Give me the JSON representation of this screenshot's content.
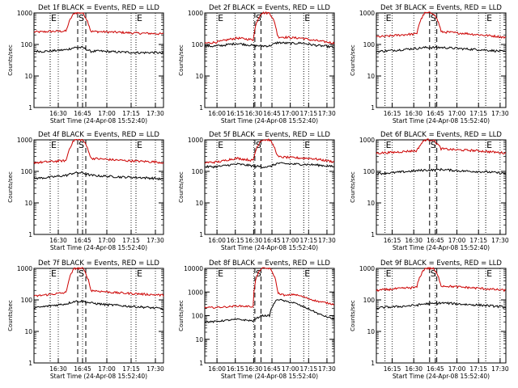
{
  "chart_data": [
    {
      "type": "line",
      "title": "Det 1f BLACK = Events, RED = LLD",
      "xlabel": "Start Time (24-Apr-08 15:52:40)",
      "ylabel": "Counts/sec",
      "yscale": "log",
      "ylim": [
        1,
        1000
      ],
      "x_ticks": [
        "16:30",
        "16:45",
        "17:00",
        "17:15",
        "17:30"
      ],
      "markers": [
        {
          "label": "E",
          "x": "16:25"
        },
        {
          "label": "S",
          "x": "16:42"
        },
        {
          "label": "E",
          "x": "17:18"
        }
      ],
      "series": [
        {
          "color": "#cc0000",
          "levels": [
            250,
            250,
            260,
            262,
            265,
            1000,
            1000,
            260,
            255,
            250,
            245,
            240,
            232,
            228,
            225,
            222,
            215
          ]
        },
        {
          "color": "#000000",
          "levels": [
            62,
            60,
            62,
            65,
            68,
            80,
            80,
            60,
            62,
            60,
            58,
            57,
            56,
            55,
            55,
            56,
            52
          ]
        }
      ]
    },
    {
      "type": "line",
      "title": "Det 2f BLACK = Events, RED = LLD",
      "xlabel": "Start Time (24-Apr-08 15:52:40)",
      "ylabel": "Counts/sec",
      "yscale": "log",
      "ylim": [
        1,
        1000
      ],
      "x_ticks": [
        "16:00",
        "16:15",
        "16:30",
        "16:45",
        "17:00",
        "17:15",
        "17:30"
      ],
      "markers": [
        {
          "label": "E",
          "x": "16:00"
        },
        {
          "label": "S",
          "x": "16:31"
        },
        {
          "label": "E",
          "x": "17:11"
        }
      ],
      "series": [
        {
          "color": "#cc0000",
          "levels": [
            110,
            115,
            125,
            145,
            160,
            150,
            140,
            1000,
            1000,
            175,
            170,
            162,
            160,
            140,
            130,
            120,
            110
          ]
        },
        {
          "color": "#000000",
          "levels": [
            90,
            88,
            92,
            100,
            108,
            100,
            92,
            90,
            90,
            115,
            110,
            108,
            112,
            100,
            92,
            88,
            80
          ]
        }
      ]
    },
    {
      "type": "line",
      "title": "Det 3f BLACK = Events, RED = LLD",
      "xlabel": "Start Time (24-Apr-08 15:52:40)",
      "ylabel": "Counts/sec",
      "yscale": "log",
      "ylim": [
        1,
        1000
      ],
      "x_ticks": [
        "16:15",
        "16:30",
        "16:45",
        "17:00",
        "17:15",
        "17:30"
      ],
      "markers": [
        {
          "label": "E",
          "x": "16:10"
        },
        {
          "label": "S",
          "x": "16:41"
        },
        {
          "label": "E",
          "x": "17:20"
        }
      ],
      "series": [
        {
          "color": "#cc0000",
          "levels": [
            175,
            180,
            190,
            200,
            210,
            215,
            1000,
            1000,
            250,
            245,
            230,
            225,
            210,
            200,
            190,
            180,
            165
          ]
        },
        {
          "color": "#000000",
          "levels": [
            60,
            62,
            65,
            68,
            72,
            75,
            80,
            80,
            80,
            78,
            75,
            72,
            70,
            68,
            65,
            62,
            58
          ]
        }
      ]
    },
    {
      "type": "line",
      "title": "Det 4f BLACK = Events, RED = LLD",
      "xlabel": "Start Time (24-Apr-08 15:52:40)",
      "ylabel": "Counts/sec",
      "yscale": "log",
      "ylim": [
        1,
        1000
      ],
      "x_ticks": [
        "16:30",
        "16:45",
        "17:00",
        "17:15",
        "17:30"
      ],
      "markers": [
        {
          "label": "E",
          "x": "16:25"
        },
        {
          "label": "S",
          "x": "16:42"
        },
        {
          "label": "E",
          "x": "17:18"
        }
      ],
      "series": [
        {
          "color": "#cc0000",
          "levels": [
            190,
            195,
            205,
            212,
            220,
            1000,
            1000,
            260,
            250,
            240,
            230,
            222,
            215,
            210,
            205,
            200,
            190
          ]
        },
        {
          "color": "#000000",
          "levels": [
            60,
            62,
            65,
            70,
            75,
            90,
            90,
            75,
            72,
            70,
            68,
            66,
            65,
            64,
            62,
            60,
            55
          ]
        }
      ]
    },
    {
      "type": "line",
      "title": "Det 5f BLACK = Events, RED = LLD",
      "xlabel": "Start Time (24-Apr-08 15:52:40)",
      "ylabel": "Counts/sec",
      "yscale": "log",
      "ylim": [
        1,
        1000
      ],
      "x_ticks": [
        "16:00",
        "16:15",
        "16:30",
        "16:45",
        "17:00",
        "17:15",
        "17:30"
      ],
      "markers": [
        {
          "label": "E",
          "x": "16:00"
        },
        {
          "label": "S",
          "x": "16:31"
        },
        {
          "label": "E",
          "x": "17:11"
        }
      ],
      "series": [
        {
          "color": "#cc0000",
          "levels": [
            190,
            195,
            205,
            240,
            260,
            240,
            220,
            1000,
            1000,
            290,
            280,
            270,
            265,
            260,
            240,
            220,
            200
          ]
        },
        {
          "color": "#000000",
          "levels": [
            140,
            140,
            145,
            160,
            170,
            160,
            148,
            140,
            140,
            180,
            175,
            170,
            168,
            165,
            158,
            150,
            140
          ]
        }
      ]
    },
    {
      "type": "line",
      "title": "Det 6f BLACK = Events, RED = LLD",
      "xlabel": "Start Time (24-Apr-08 15:52:40)",
      "ylabel": "Counts/sec",
      "yscale": "log",
      "ylim": [
        1,
        1000
      ],
      "x_ticks": [
        "16:15",
        "16:30",
        "16:45",
        "17:00",
        "17:15",
        "17:30"
      ],
      "markers": [
        {
          "label": "E",
          "x": "16:10"
        },
        {
          "label": "S",
          "x": "16:41"
        },
        {
          "label": "E",
          "x": "17:20"
        }
      ],
      "series": [
        {
          "color": "#cc0000",
          "levels": [
            380,
            390,
            400,
            420,
            440,
            450,
            1000,
            1000,
            520,
            500,
            480,
            470,
            460,
            440,
            420,
            400,
            380
          ]
        },
        {
          "color": "#000000",
          "levels": [
            85,
            88,
            90,
            95,
            100,
            105,
            110,
            110,
            115,
            110,
            105,
            102,
            100,
            98,
            95,
            90,
            85
          ]
        }
      ]
    },
    {
      "type": "line",
      "title": "Det 7f BLACK = Events, RED = LLD",
      "xlabel": "Start Time (24-Apr-08 15:52:40)",
      "ylabel": "Counts/sec",
      "yscale": "log",
      "ylim": [
        1,
        1000
      ],
      "x_ticks": [
        "16:30",
        "16:45",
        "17:00",
        "17:15",
        "17:30"
      ],
      "markers": [
        {
          "label": "E",
          "x": "16:25"
        },
        {
          "label": "S",
          "x": "16:42"
        },
        {
          "label": "E",
          "x": "17:18"
        }
      ],
      "series": [
        {
          "color": "#cc0000",
          "levels": [
            130,
            140,
            150,
            160,
            170,
            1000,
            1000,
            200,
            190,
            180,
            170,
            165,
            160,
            155,
            150,
            145,
            140
          ]
        },
        {
          "color": "#000000",
          "levels": [
            55,
            60,
            65,
            70,
            75,
            90,
            90,
            80,
            75,
            70,
            68,
            65,
            62,
            60,
            58,
            55,
            52
          ]
        }
      ]
    },
    {
      "type": "line",
      "title": "Det 8f BLACK = Events, RED = LLD",
      "xlabel": "Start Time (24-Apr-08 15:52:40)",
      "ylabel": "Counts/sec",
      "yscale": "log",
      "ylim": [
        1,
        10000
      ],
      "x_ticks": [
        "16:00",
        "16:15",
        "16:30",
        "16:45",
        "17:00",
        "17:15",
        "17:30"
      ],
      "markers": [
        {
          "label": "E",
          "x": "16:00"
        },
        {
          "label": "S",
          "x": "16:31"
        },
        {
          "label": "E",
          "x": "17:11"
        }
      ],
      "series": [
        {
          "color": "#cc0000",
          "levels": [
            220,
            220,
            230,
            240,
            260,
            250,
            240,
            10000,
            10000,
            900,
            700,
            800,
            650,
            500,
            400,
            350,
            300
          ]
        },
        {
          "color": "#000000",
          "levels": [
            55,
            55,
            60,
            65,
            70,
            65,
            60,
            100,
            100,
            500,
            400,
            350,
            250,
            180,
            120,
            90,
            70
          ]
        }
      ]
    },
    {
      "type": "line",
      "title": "Det 9f BLACK = Events, RED = LLD",
      "xlabel": "Start Time (24-Apr-08 15:52:40)",
      "ylabel": "Counts/sec",
      "yscale": "log",
      "ylim": [
        1,
        1000
      ],
      "x_ticks": [
        "16:15",
        "16:30",
        "16:45",
        "17:00",
        "17:15",
        "17:30"
      ],
      "markers": [
        {
          "label": "E",
          "x": "16:10"
        },
        {
          "label": "S",
          "x": "16:41"
        },
        {
          "label": "E",
          "x": "17:20"
        }
      ],
      "series": [
        {
          "color": "#cc0000",
          "levels": [
            200,
            210,
            220,
            230,
            240,
            250,
            1000,
            1000,
            280,
            270,
            260,
            250,
            240,
            230,
            220,
            210,
            200
          ]
        },
        {
          "color": "#000000",
          "levels": [
            55,
            58,
            60,
            62,
            65,
            68,
            75,
            75,
            80,
            78,
            75,
            72,
            70,
            68,
            65,
            62,
            58
          ]
        }
      ]
    }
  ]
}
